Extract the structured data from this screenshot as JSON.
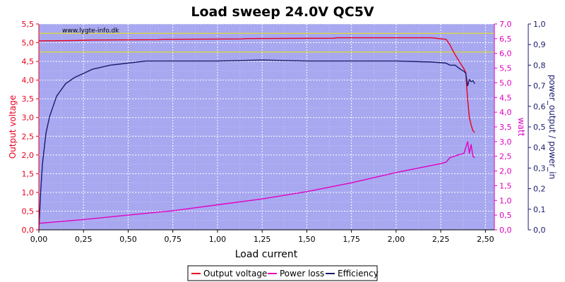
{
  "chart_data": {
    "type": "line",
    "title": "Load sweep 24.0V QC5V",
    "watermark": "www.lygte-info.dk",
    "xlabel": "Load current",
    "xlim": [
      0,
      2.55
    ],
    "x_ticks": [
      "0,00",
      "0,25",
      "0,50",
      "0,75",
      "1,00",
      "1,25",
      "1,50",
      "1,75",
      "2,00",
      "2,25",
      "2,50"
    ],
    "left_axis": {
      "label": "Output voltage",
      "color": "#e8001c",
      "ylim": [
        0,
        5.5
      ],
      "ticks": [
        "0,0",
        "0,5",
        "1,0",
        "1,5",
        "2,0",
        "2,5",
        "3,0",
        "3,5",
        "4,0",
        "4,5",
        "5,0",
        "5,5"
      ]
    },
    "right_axis_1": {
      "label": "watt",
      "color": "#e000c0",
      "ylim": [
        0,
        7.0
      ],
      "ticks": [
        "0,0",
        "0,5",
        "1,0",
        "1,5",
        "2,0",
        "2,5",
        "3,0",
        "3,5",
        "4,0",
        "4,5",
        "5,0",
        "5,5",
        "6,0",
        "6,5",
        "7,0"
      ]
    },
    "right_axis_2": {
      "label": "power_output / power_in",
      "color": "#1a1a6e",
      "ylim": [
        0,
        1.0
      ],
      "ticks": [
        "0,0",
        "0,1",
        "0,2",
        "0,3",
        "0,4",
        "0,5",
        "0,6",
        "0,7",
        "0,8",
        "0,9",
        "1,0"
      ]
    },
    "reference_lines": [
      {
        "axis": "left",
        "y": 5.25,
        "color": "#e8e800"
      },
      {
        "axis": "left",
        "y": 4.75,
        "color": "#e8e800"
      }
    ],
    "plot_background": "#a8a8f0",
    "grid": true,
    "legend_position": "bottom-center",
    "series": [
      {
        "name": "Output voltage",
        "axis": "left",
        "color": "#e8001c",
        "x": [
          0.0,
          0.01,
          0.2,
          0.3,
          0.67,
          0.7,
          1.14,
          1.16,
          1.65,
          1.67,
          2.2,
          2.22,
          2.28,
          2.3,
          2.32,
          2.34,
          2.36,
          2.38,
          2.39,
          2.4,
          2.41,
          2.42,
          2.43,
          2.44
        ],
        "y": [
          5.04,
          5.05,
          5.06,
          5.07,
          5.08,
          5.09,
          5.1,
          5.11,
          5.12,
          5.13,
          5.13,
          5.12,
          5.09,
          4.95,
          4.77,
          4.6,
          4.45,
          4.3,
          4.2,
          3.5,
          3.0,
          2.8,
          2.65,
          2.6
        ]
      },
      {
        "name": "Power loss",
        "axis": "right_watt",
        "color": "#e000c0",
        "x": [
          0.0,
          0.25,
          0.5,
          0.75,
          1.0,
          1.25,
          1.5,
          1.75,
          2.0,
          2.25,
          2.28,
          2.3,
          2.35,
          2.38,
          2.39,
          2.4,
          2.41,
          2.42,
          2.43,
          2.44
        ],
        "y": [
          0.22,
          0.35,
          0.5,
          0.65,
          0.85,
          1.05,
          1.3,
          1.6,
          1.95,
          2.25,
          2.3,
          2.45,
          2.55,
          2.6,
          2.8,
          3.0,
          2.6,
          2.9,
          2.5,
          2.45
        ]
      },
      {
        "name": "Efficiency",
        "axis": "right_ratio",
        "color": "#1a1a6e",
        "x": [
          0.0,
          0.01,
          0.02,
          0.04,
          0.06,
          0.08,
          0.1,
          0.15,
          0.2,
          0.25,
          0.3,
          0.4,
          0.5,
          0.6,
          0.75,
          1.0,
          1.25,
          1.5,
          1.75,
          2.0,
          2.2,
          2.28,
          2.3,
          2.33,
          2.36,
          2.38,
          2.39,
          2.4,
          2.41,
          2.42,
          2.43,
          2.44
        ],
        "y": [
          0.0,
          0.18,
          0.32,
          0.47,
          0.55,
          0.6,
          0.65,
          0.71,
          0.74,
          0.76,
          0.78,
          0.8,
          0.81,
          0.82,
          0.82,
          0.82,
          0.825,
          0.82,
          0.82,
          0.82,
          0.815,
          0.81,
          0.8,
          0.8,
          0.78,
          0.77,
          0.76,
          0.7,
          0.73,
          0.72,
          0.725,
          0.71
        ]
      }
    ]
  }
}
